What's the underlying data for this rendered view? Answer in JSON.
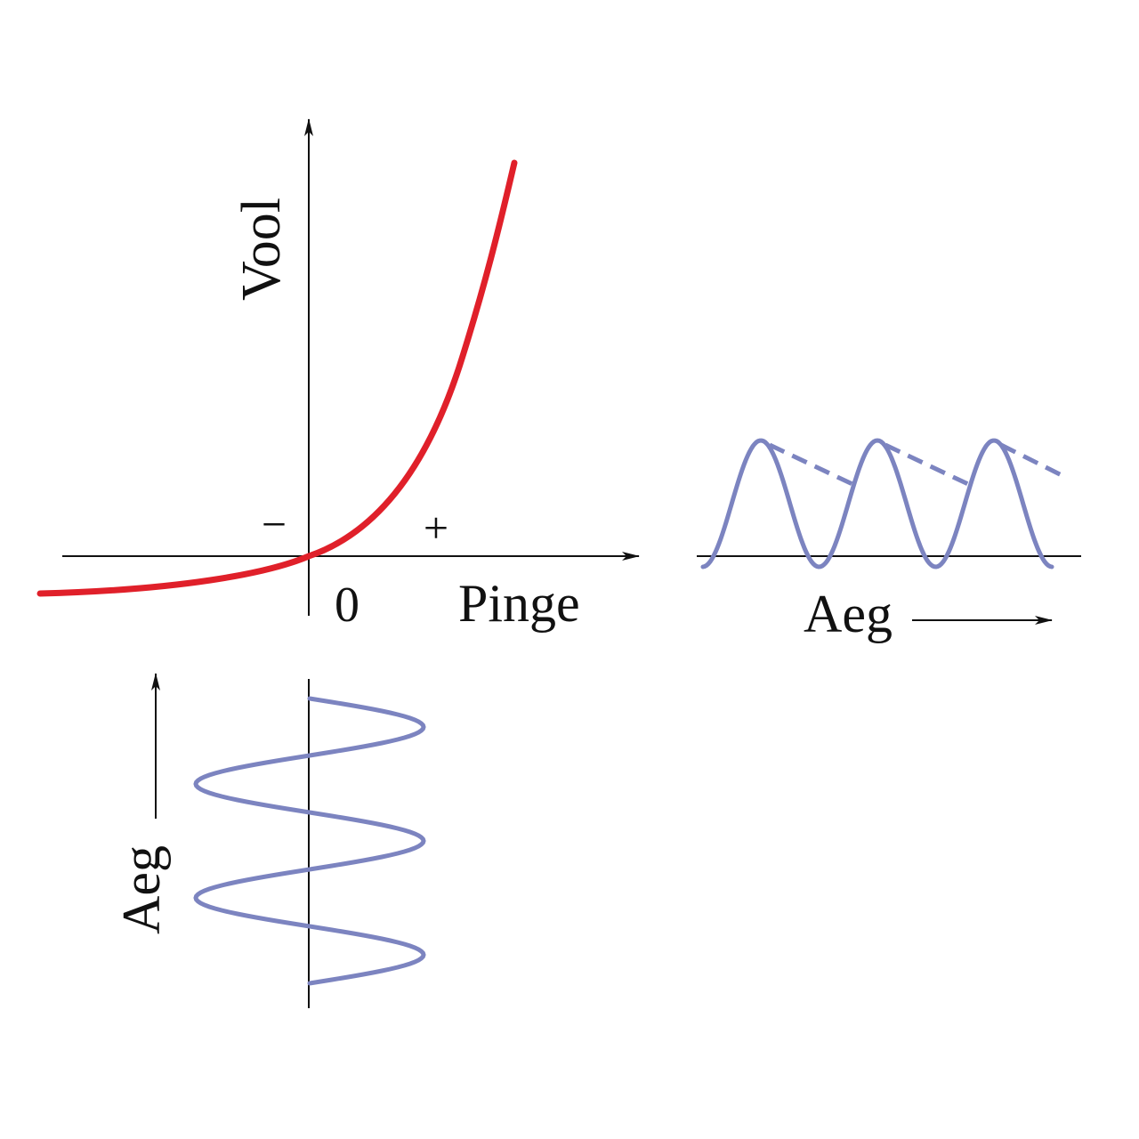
{
  "main_graph": {
    "y_label": "Vool",
    "x_label": "Pinge",
    "origin_label": "0",
    "negative_label": "−",
    "positive_label": "+"
  },
  "output_graph": {
    "time_label": "Aeg"
  },
  "input_graph": {
    "time_label": "Aeg"
  }
}
